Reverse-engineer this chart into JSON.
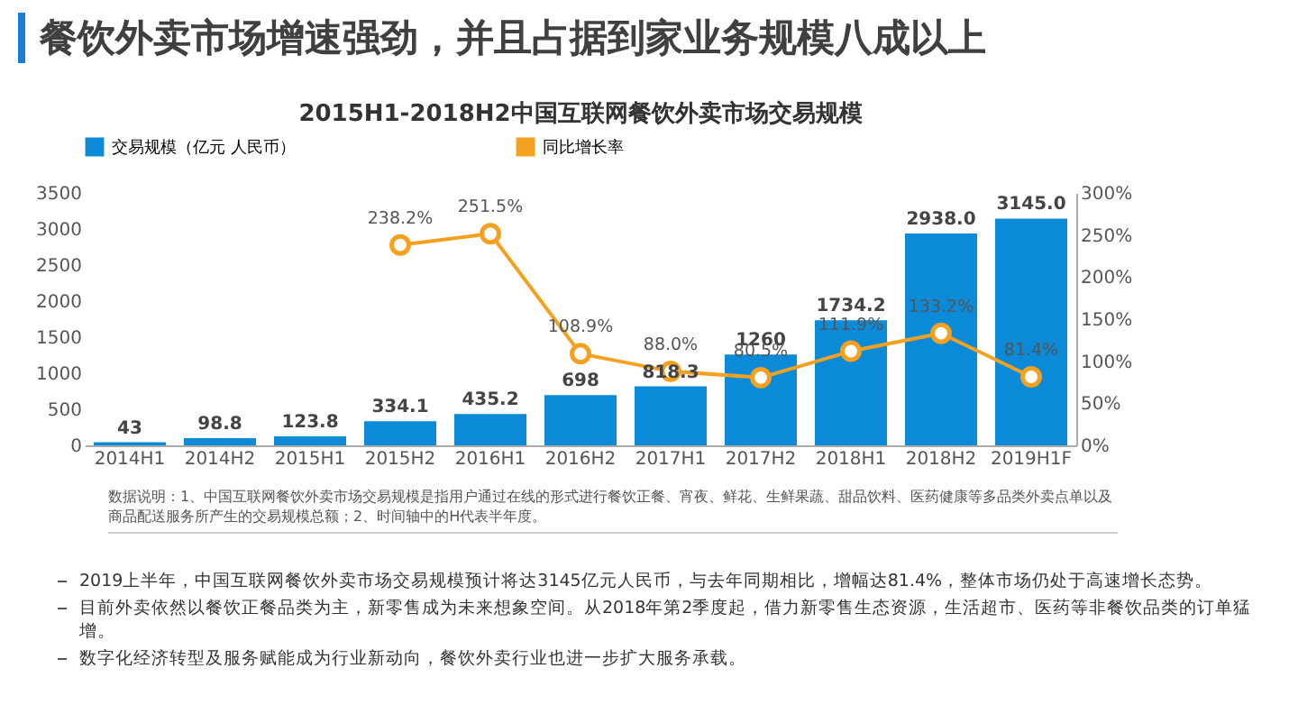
{
  "chart_data": {
    "type": "bar",
    "title": "餐饮外卖市场增速强劲，并且占据到家业务规模八成以上",
    "subtitle": "2015H1-2018H2中国互联网餐饮外卖市场交易规模",
    "categories": [
      "2014H1",
      "2014H2",
      "2015H1",
      "2015H2",
      "2016H1",
      "2016H2",
      "2017H1",
      "2017H2",
      "2018H1",
      "2018H2",
      "2019H1F"
    ],
    "series": [
      {
        "name": "交易规模（亿元 人民币）",
        "color": "#0b8ad8",
        "values": [
          43,
          98.8,
          123.8,
          334.1,
          435.2,
          698,
          818.3,
          1260,
          1734.2,
          2938.0,
          3145.0
        ],
        "value_labels": [
          "43",
          "98.8",
          "123.8",
          "334.1",
          "435.2",
          "698",
          "818.3",
          "1260",
          "1734.2",
          "2938.0",
          "3145.0"
        ]
      },
      {
        "name": "同比增长率",
        "type": "line",
        "axis": "y2",
        "color": "#f5a01e",
        "marker": "circle",
        "values": [
          null,
          null,
          null,
          238.2,
          251.5,
          108.9,
          88.0,
          80.5,
          111.9,
          133.2,
          81.4
        ],
        "value_labels": [
          null,
          null,
          null,
          "238.2%",
          "251.5%",
          "108.9%",
          "88.0%",
          "80.5%",
          "111.9%",
          "133.2%",
          "81.4%"
        ]
      }
    ],
    "ylim": [
      0,
      3500
    ],
    "yticks": [
      0,
      500,
      1000,
      1500,
      2000,
      2500,
      3000,
      3500
    ],
    "y2lim": [
      0,
      300
    ],
    "y2ticks": [
      {
        "value": 0,
        "label": "0%"
      },
      {
        "value": 50,
        "label": "50%"
      },
      {
        "value": 100,
        "label": "100%"
      },
      {
        "value": 150,
        "label": "150%"
      },
      {
        "value": 200,
        "label": "200%"
      },
      {
        "value": 250,
        "label": "250%"
      },
      {
        "value": 300,
        "label": "300%"
      }
    ],
    "grid": false,
    "legend": "top",
    "annotations": [
      "数据说明：1、中国互联网餐饮外卖市场交易规模是指用户通过在线的形式进行餐饮正餐、宵夜、鲜花、生鲜果蔬、甜品饮料、医药健康等多品类外卖点单以及商品配送服务所产生的交易规模总额；2、时间轴中的H代表半年度。",
      "2019上半年，中国互联网餐饮外卖市场交易规模预计将达3145亿元人民币，与去年同期相比，增幅达81.4%，整体市场仍处于高速增长态势。",
      "目前外卖依然以餐饮正餐品类为主，新零售成为未来想象空间。从2018年第2季度起，借力新零售生态资源，生活超市、医药等非餐饮品类的订单猛增。",
      "数字化经济转型及服务赋能成为行业新动向，餐饮外卖行业也进一步扩大服务承载。"
    ]
  }
}
